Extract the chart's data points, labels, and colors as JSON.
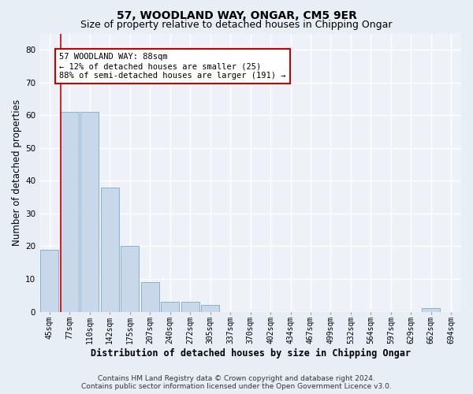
{
  "title": "57, WOODLAND WAY, ONGAR, CM5 9ER",
  "subtitle": "Size of property relative to detached houses in Chipping Ongar",
  "xlabel": "Distribution of detached houses by size in Chipping Ongar",
  "ylabel": "Number of detached properties",
  "bar_labels": [
    "45sqm",
    "77sqm",
    "110sqm",
    "142sqm",
    "175sqm",
    "207sqm",
    "240sqm",
    "272sqm",
    "305sqm",
    "337sqm",
    "370sqm",
    "402sqm",
    "434sqm",
    "467sqm",
    "499sqm",
    "532sqm",
    "564sqm",
    "597sqm",
    "629sqm",
    "662sqm",
    "694sqm"
  ],
  "bar_values": [
    19,
    61,
    61,
    38,
    20,
    9,
    3,
    3,
    2,
    0,
    0,
    0,
    0,
    0,
    0,
    0,
    0,
    0,
    0,
    1,
    0
  ],
  "bar_color": "#c8d8ea",
  "bar_edge_color": "#7aaac8",
  "vline_color": "#cc0000",
  "ylim": [
    0,
    85
  ],
  "yticks": [
    0,
    10,
    20,
    30,
    40,
    50,
    60,
    70,
    80
  ],
  "annotation_text": "57 WOODLAND WAY: 88sqm\n← 12% of detached houses are smaller (25)\n88% of semi-detached houses are larger (191) →",
  "annotation_box_color": "#ffffff",
  "annotation_box_edge": "#cc0000",
  "footer_line1": "Contains HM Land Registry data © Crown copyright and database right 2024.",
  "footer_line2": "Contains public sector information licensed under the Open Government Licence v3.0.",
  "bg_color": "#e8eef6",
  "plot_bg_color": "#eef2f8",
  "grid_color": "#ffffff",
  "title_fontsize": 10,
  "subtitle_fontsize": 9,
  "axis_label_fontsize": 8.5,
  "tick_fontsize": 7,
  "annotation_fontsize": 7.5,
  "footer_fontsize": 6.5
}
